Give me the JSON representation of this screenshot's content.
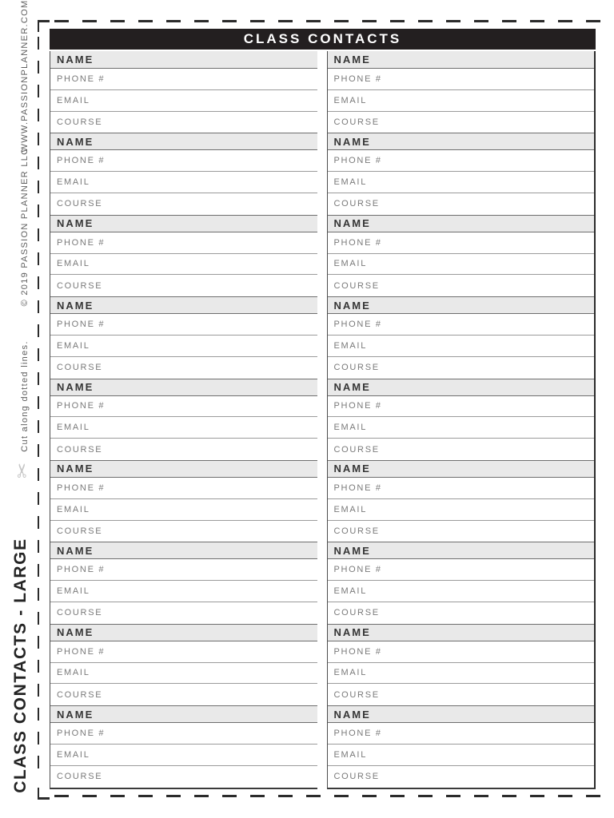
{
  "sidebar": {
    "website": "WWW.PASSIONPLANNER.COM",
    "copyright": "© 2019 PASSION PLANNER LLC",
    "cut_instruction": "Cut along dotted lines.",
    "scissors_icon": "✂",
    "page_label": "CLASS CONTACTS - LARGE"
  },
  "header": {
    "title": "CLASS CONTACTS"
  },
  "contact_block": {
    "name_label": "NAME",
    "fields": [
      {
        "label": "PHONE #"
      },
      {
        "label": "EMAIL"
      },
      {
        "label": "COURSE"
      }
    ]
  },
  "layout": {
    "columns": 2,
    "blocks_per_column": 9
  },
  "colors": {
    "header_bg": "#231F20",
    "header_text": "#FFFFFF",
    "name_row_bg": "#E9E9E9",
    "name_text": "#363636",
    "field_label": "#7A7A7A",
    "rule_line": "#9B9B9B",
    "cut_line": "#2B2B2B",
    "scissors": "#C6C6C6"
  }
}
